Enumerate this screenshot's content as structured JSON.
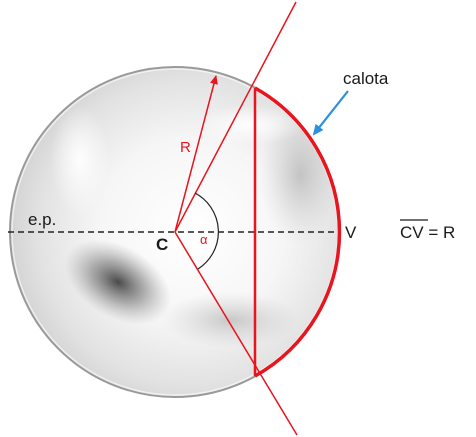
{
  "labels": {
    "calota": "calota",
    "radius": "R",
    "center": "C",
    "angle": "α",
    "vertex": "V",
    "plane": "e.p.",
    "formula_overline": "CV",
    "formula_rest": " = R"
  },
  "colors": {
    "accent_red": "#e8141e",
    "arrow_blue": "#2c8fe0",
    "sphere_edge": "#9a9a9a",
    "text": "#1a1a1a",
    "dashed_axis": "#222222"
  }
}
